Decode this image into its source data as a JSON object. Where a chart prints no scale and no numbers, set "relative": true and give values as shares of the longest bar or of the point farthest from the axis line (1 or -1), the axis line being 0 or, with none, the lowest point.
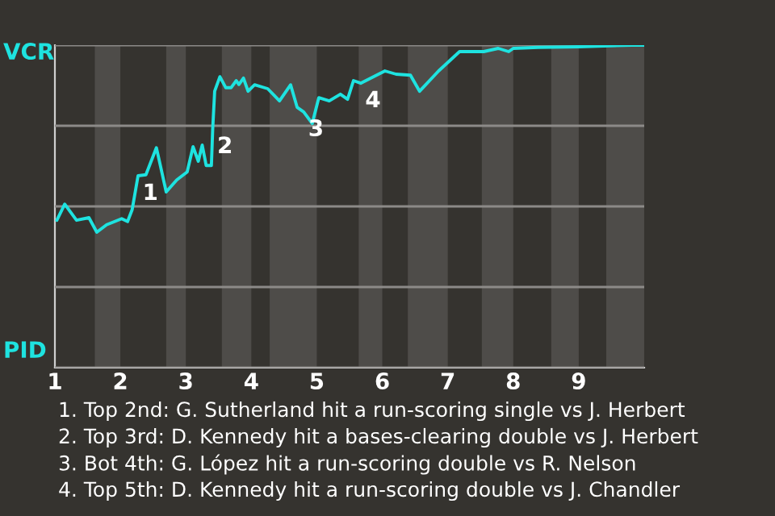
{
  "chart_data": {
    "type": "line",
    "relative": true,
    "x": [
      1.03,
      1.15,
      1.33,
      1.52,
      1.64,
      1.79,
      2.02,
      2.11,
      2.18,
      2.27,
      2.39,
      2.55,
      2.7,
      2.86,
      3.02,
      3.11,
      3.19,
      3.25,
      3.31,
      3.39,
      3.41,
      3.44,
      3.52,
      3.61,
      3.69,
      3.77,
      3.81,
      3.88,
      3.95,
      4.05,
      4.25,
      4.43,
      4.6,
      4.7,
      4.8,
      4.93,
      5.03,
      5.19,
      5.36,
      5.47,
      5.56,
      5.67,
      6.04,
      6.21,
      6.43,
      6.57,
      6.86,
      7.18,
      7.55,
      7.77,
      7.93,
      8.0,
      8.38,
      9.0,
      9.81,
      10.0
    ],
    "series": [
      {
        "color": "#1ee3e0",
        "values": [
          0.457,
          0.507,
          0.457,
          0.465,
          0.42,
          0.443,
          0.462,
          0.453,
          0.49,
          0.595,
          0.598,
          0.682,
          0.545,
          0.582,
          0.607,
          0.685,
          0.64,
          0.69,
          0.627,
          0.627,
          0.74,
          0.857,
          0.902,
          0.868,
          0.868,
          0.89,
          0.878,
          0.898,
          0.857,
          0.877,
          0.865,
          0.827,
          0.877,
          0.807,
          0.793,
          0.757,
          0.837,
          0.827,
          0.848,
          0.832,
          0.89,
          0.882,
          0.92,
          0.91,
          0.907,
          0.857,
          0.92,
          0.98,
          0.98,
          0.99,
          0.98,
          0.99,
          0.993,
          0.995,
          1.0,
          1.0
        ]
      }
    ],
    "xlim": [
      1,
      10
    ],
    "xticks": [
      1,
      2,
      3,
      4,
      5,
      6,
      7,
      8,
      9
    ],
    "bands": [
      {
        "axis": "x",
        "from": 1.61,
        "to": 2,
        "color": "#4e4c49"
      },
      {
        "axis": "x",
        "from": 2.7,
        "to": 3,
        "color": "#4e4c49"
      },
      {
        "axis": "x",
        "from": 3.55,
        "to": 4,
        "color": "#4e4c49"
      },
      {
        "axis": "x",
        "from": 4.28,
        "to": 5,
        "color": "#4e4c49"
      },
      {
        "axis": "x",
        "from": 5.64,
        "to": 6,
        "color": "#4e4c49"
      },
      {
        "axis": "x",
        "from": 6.39,
        "to": 7,
        "color": "#4e4c49"
      },
      {
        "axis": "x",
        "from": 7.52,
        "to": 8,
        "color": "#4e4c49"
      },
      {
        "axis": "x",
        "from": 8.58,
        "to": 9,
        "color": "#4e4c49"
      },
      {
        "axis": "x",
        "from": 9.42,
        "to": 10,
        "color": "#4e4c49"
      }
    ],
    "grid": "y",
    "annotations": [
      "VCR",
      "PID",
      {
        "text": "1",
        "x": 2.27,
        "y": 0.595
      },
      {
        "text": "2",
        "x": 3.41,
        "y": 0.74
      },
      {
        "text": "3",
        "x": 4.8,
        "y": 0.793
      },
      {
        "text": "4",
        "x": 5.67,
        "y": 0.882
      },
      "1. Top 2nd: G. Sutherland hit a run-scoring single vs J. Herbert",
      "2. Top 3rd: D. Kennedy hit a bases-clearing double vs J. Herbert",
      "3. Bot 4th: G. López hit a run-scoring double vs R. Nelson",
      "4. Top 5th: D. Kennedy hit a run-scoring double vs J. Chandler"
    ]
  }
}
